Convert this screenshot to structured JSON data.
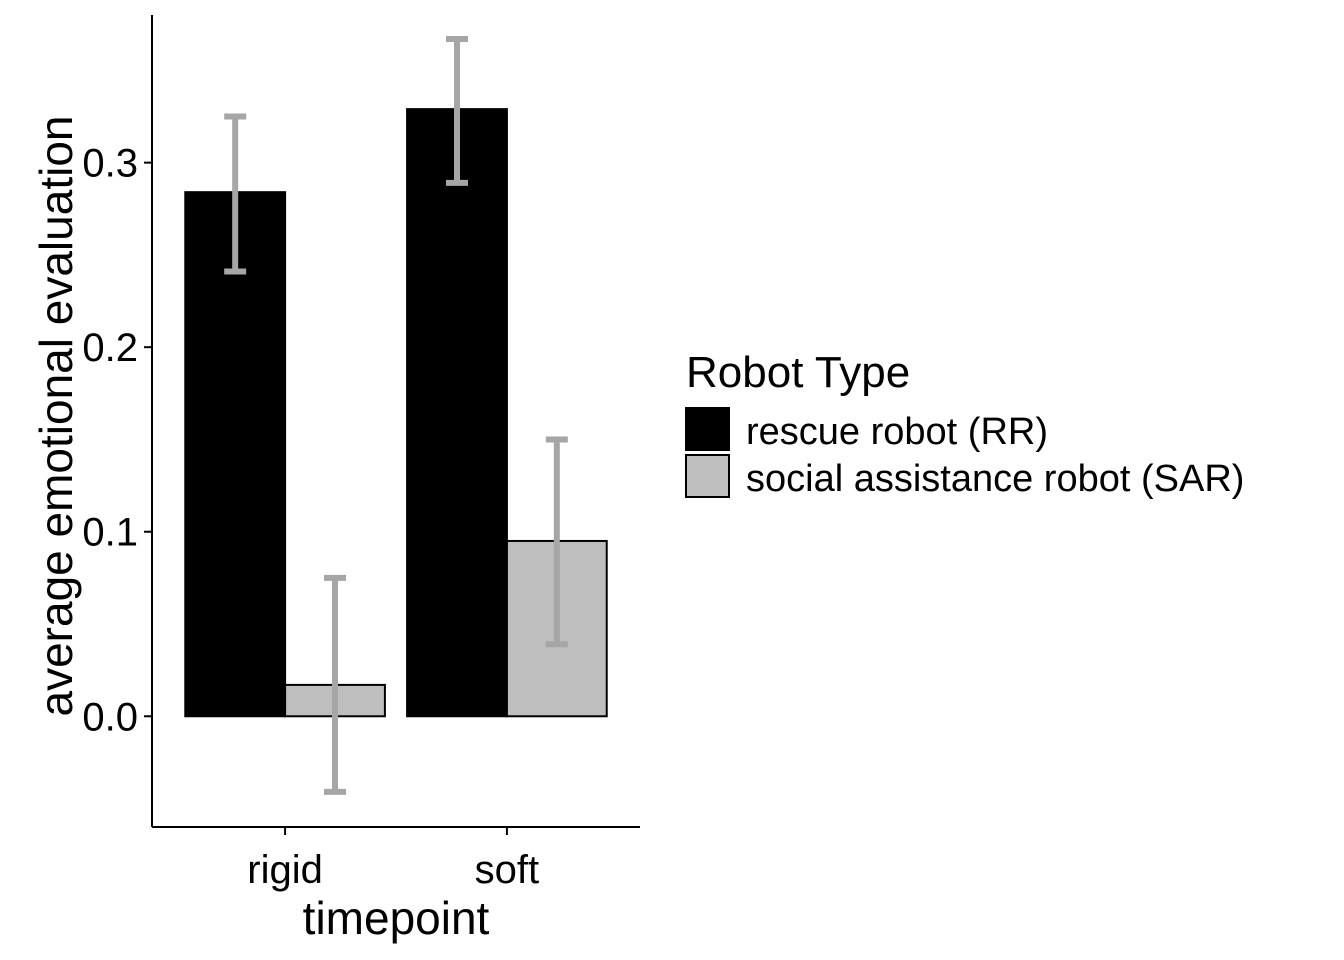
{
  "chart_data": {
    "type": "bar",
    "xlabel": "timepoint",
    "ylabel": "average emotional evaluation",
    "categories": [
      "rigid",
      "soft"
    ],
    "ylim": [
      -0.06,
      0.38
    ],
    "yticks": [
      0.0,
      0.1,
      0.2,
      0.3
    ],
    "yticks_text": [
      "0.0",
      "0.1",
      "0.2",
      "0.3"
    ],
    "grid": false,
    "legend": {
      "title": "Robot Type",
      "placement": "right"
    },
    "series": [
      {
        "name": "rescue robot (RR)",
        "color": "#000000",
        "values": [
          0.284,
          0.329
        ],
        "error_low": [
          0.241,
          0.289
        ],
        "error_high": [
          0.325,
          0.367
        ]
      },
      {
        "name": "social assistance robot (SAR)",
        "color": "#bebebe",
        "values": [
          0.017,
          0.095
        ],
        "error_low": [
          -0.041,
          0.039
        ],
        "error_high": [
          0.075,
          0.15
        ]
      }
    ],
    "error_bar_color": "#a6a6a6"
  }
}
